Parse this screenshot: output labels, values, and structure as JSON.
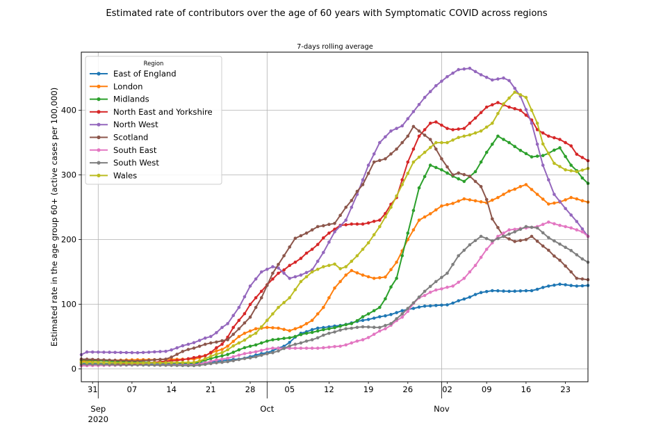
{
  "chart_data": {
    "type": "line",
    "title": "Estimated rate of contributors over the age of 60 years with Symptomatic COVID across regions",
    "subtitle": "7-days rolling average",
    "xlabel": "",
    "ylabel": "Estimated rate in the age group 60+ (active cases per 100,000)",
    "x_start": "2020-08-29",
    "x_end": "2020-11-27",
    "xlim_days": [
      0,
      90
    ],
    "ylim": [
      -20,
      490
    ],
    "yticks": [
      0,
      100,
      200,
      300,
      400
    ],
    "minor_ticks": [
      {
        "day": 2,
        "label": "31"
      },
      {
        "day": 9,
        "label": "07"
      },
      {
        "day": 16,
        "label": "14"
      },
      {
        "day": 23,
        "label": "21"
      },
      {
        "day": 30,
        "label": "28"
      },
      {
        "day": 37,
        "label": "05"
      },
      {
        "day": 44,
        "label": "12"
      },
      {
        "day": 51,
        "label": "19"
      },
      {
        "day": 58,
        "label": "26"
      },
      {
        "day": 65,
        "label": "02"
      },
      {
        "day": 72,
        "label": "09"
      },
      {
        "day": 79,
        "label": "16"
      },
      {
        "day": 86,
        "label": "23"
      }
    ],
    "major_ticks": [
      {
        "day": 3,
        "label": "Sep\n2020"
      },
      {
        "day": 33,
        "label": "Oct"
      },
      {
        "day": 64,
        "label": "Nov"
      }
    ],
    "grid": true,
    "legend": {
      "title": "Region",
      "position": "top-left"
    },
    "series": [
      {
        "name": "East of England",
        "color": "#1f77b4",
        "keys": [
          [
            0,
            9
          ],
          [
            10,
            8
          ],
          [
            20,
            8
          ],
          [
            28,
            15
          ],
          [
            33,
            25
          ],
          [
            36,
            35
          ],
          [
            39,
            55
          ],
          [
            42,
            63
          ],
          [
            46,
            67
          ],
          [
            50,
            75
          ],
          [
            54,
            82
          ],
          [
            58,
            92
          ],
          [
            61,
            97
          ],
          [
            65,
            99
          ],
          [
            68,
            108
          ],
          [
            71,
            118
          ],
          [
            73,
            121
          ],
          [
            76,
            120
          ],
          [
            80,
            121
          ],
          [
            83,
            128
          ],
          [
            85,
            131
          ],
          [
            88,
            128
          ],
          [
            90,
            129
          ]
        ]
      },
      {
        "name": "London",
        "color": "#ff7f0e",
        "keys": [
          [
            0,
            12
          ],
          [
            10,
            14
          ],
          [
            20,
            15
          ],
          [
            25,
            30
          ],
          [
            29,
            55
          ],
          [
            31,
            62
          ],
          [
            33,
            64
          ],
          [
            35,
            63
          ],
          [
            37,
            59
          ],
          [
            39,
            65
          ],
          [
            41,
            75
          ],
          [
            43,
            95
          ],
          [
            45,
            125
          ],
          [
            47,
            145
          ],
          [
            48,
            152
          ],
          [
            50,
            145
          ],
          [
            52,
            140
          ],
          [
            54,
            142
          ],
          [
            56,
            165
          ],
          [
            58,
            200
          ],
          [
            60,
            230
          ],
          [
            62,
            240
          ],
          [
            64,
            252
          ],
          [
            66,
            256
          ],
          [
            68,
            263
          ],
          [
            70,
            260
          ],
          [
            72,
            257
          ],
          [
            74,
            265
          ],
          [
            76,
            275
          ],
          [
            79,
            285
          ],
          [
            81,
            270
          ],
          [
            83,
            255
          ],
          [
            85,
            258
          ],
          [
            87,
            265
          ],
          [
            90,
            258
          ]
        ]
      },
      {
        "name": "Midlands",
        "color": "#2ca02c",
        "keys": [
          [
            0,
            14
          ],
          [
            10,
            10
          ],
          [
            20,
            9
          ],
          [
            25,
            20
          ],
          [
            30,
            35
          ],
          [
            34,
            45
          ],
          [
            37,
            48
          ],
          [
            40,
            55
          ],
          [
            44,
            62
          ],
          [
            48,
            70
          ],
          [
            51,
            85
          ],
          [
            53,
            95
          ],
          [
            56,
            140
          ],
          [
            58,
            210
          ],
          [
            60,
            280
          ],
          [
            62,
            315
          ],
          [
            64,
            308
          ],
          [
            66,
            298
          ],
          [
            68,
            290
          ],
          [
            70,
            305
          ],
          [
            72,
            335
          ],
          [
            74,
            360
          ],
          [
            76,
            350
          ],
          [
            78,
            338
          ],
          [
            80,
            328
          ],
          [
            82,
            330
          ],
          [
            85,
            342
          ],
          [
            87,
            315
          ],
          [
            90,
            287
          ]
        ]
      },
      {
        "name": "North East and Yorkshire",
        "color": "#d62728",
        "keys": [
          [
            0,
            5
          ],
          [
            10,
            8
          ],
          [
            17,
            13
          ],
          [
            22,
            20
          ],
          [
            25,
            38
          ],
          [
            28,
            75
          ],
          [
            31,
            110
          ],
          [
            33,
            130
          ],
          [
            35,
            148
          ],
          [
            38,
            165
          ],
          [
            41,
            185
          ],
          [
            44,
            210
          ],
          [
            46,
            222
          ],
          [
            48,
            224
          ],
          [
            50,
            224
          ],
          [
            53,
            230
          ],
          [
            56,
            265
          ],
          [
            58,
            320
          ],
          [
            60,
            360
          ],
          [
            62,
            380
          ],
          [
            63,
            382
          ],
          [
            65,
            372
          ],
          [
            66,
            370
          ],
          [
            68,
            372
          ],
          [
            70,
            388
          ],
          [
            72,
            405
          ],
          [
            74,
            412
          ],
          [
            76,
            405
          ],
          [
            78,
            400
          ],
          [
            80,
            385
          ],
          [
            81,
            370
          ],
          [
            83,
            360
          ],
          [
            85,
            355
          ],
          [
            87,
            345
          ],
          [
            88,
            332
          ],
          [
            90,
            322
          ]
        ]
      },
      {
        "name": "North West",
        "color": "#9467bd",
        "keys": [
          [
            0,
            22
          ],
          [
            1,
            26
          ],
          [
            10,
            25
          ],
          [
            15,
            27
          ],
          [
            19,
            38
          ],
          [
            23,
            50
          ],
          [
            26,
            70
          ],
          [
            28,
            95
          ],
          [
            30,
            128
          ],
          [
            32,
            150
          ],
          [
            34,
            158
          ],
          [
            35,
            156
          ],
          [
            37,
            140
          ],
          [
            39,
            145
          ],
          [
            41,
            153
          ],
          [
            43,
            180
          ],
          [
            45,
            212
          ],
          [
            47,
            230
          ],
          [
            49,
            270
          ],
          [
            51,
            315
          ],
          [
            53,
            350
          ],
          [
            55,
            368
          ],
          [
            57,
            376
          ],
          [
            59,
            398
          ],
          [
            61,
            420
          ],
          [
            63,
            438
          ],
          [
            65,
            452
          ],
          [
            67,
            463
          ],
          [
            69,
            465
          ],
          [
            71,
            455
          ],
          [
            73,
            447
          ],
          [
            75,
            450
          ],
          [
            76,
            446
          ],
          [
            78,
            422
          ],
          [
            80,
            380
          ],
          [
            82,
            315
          ],
          [
            84,
            270
          ],
          [
            86,
            248
          ],
          [
            88,
            228
          ],
          [
            90,
            205
          ]
        ]
      },
      {
        "name": "Scotland",
        "color": "#8c564b",
        "keys": [
          [
            0,
            15
          ],
          [
            10,
            12
          ],
          [
            15,
            15
          ],
          [
            19,
            30
          ],
          [
            23,
            40
          ],
          [
            26,
            45
          ],
          [
            28,
            62
          ],
          [
            30,
            80
          ],
          [
            32,
            110
          ],
          [
            34,
            148
          ],
          [
            36,
            175
          ],
          [
            38,
            202
          ],
          [
            40,
            210
          ],
          [
            42,
            220
          ],
          [
            45,
            225
          ],
          [
            47,
            250
          ],
          [
            50,
            285
          ],
          [
            52,
            320
          ],
          [
            54,
            325
          ],
          [
            56,
            340
          ],
          [
            58,
            360
          ],
          [
            59,
            375
          ],
          [
            60,
            368
          ],
          [
            62,
            355
          ],
          [
            64,
            325
          ],
          [
            66,
            300
          ],
          [
            67,
            303
          ],
          [
            69,
            298
          ],
          [
            71,
            282
          ],
          [
            72,
            262
          ],
          [
            73,
            232
          ],
          [
            75,
            205
          ],
          [
            77,
            197
          ],
          [
            79,
            200
          ],
          [
            80,
            205
          ],
          [
            82,
            190
          ],
          [
            85,
            168
          ],
          [
            87,
            150
          ],
          [
            88,
            140
          ],
          [
            90,
            138
          ]
        ]
      },
      {
        "name": "South East",
        "color": "#e377c2",
        "keys": [
          [
            0,
            5
          ],
          [
            10,
            6
          ],
          [
            20,
            6
          ],
          [
            25,
            15
          ],
          [
            30,
            25
          ],
          [
            34,
            32
          ],
          [
            38,
            32
          ],
          [
            42,
            32
          ],
          [
            46,
            35
          ],
          [
            50,
            45
          ],
          [
            54,
            62
          ],
          [
            57,
            80
          ],
          [
            60,
            110
          ],
          [
            63,
            122
          ],
          [
            66,
            128
          ],
          [
            68,
            140
          ],
          [
            70,
            160
          ],
          [
            72,
            185
          ],
          [
            74,
            205
          ],
          [
            76,
            215
          ],
          [
            79,
            218
          ],
          [
            81,
            220
          ],
          [
            83,
            227
          ],
          [
            85,
            222
          ],
          [
            87,
            218
          ],
          [
            89,
            212
          ],
          [
            90,
            205
          ]
        ]
      },
      {
        "name": "South West",
        "color": "#7f7f7f",
        "keys": [
          [
            0,
            7
          ],
          [
            10,
            6
          ],
          [
            20,
            5
          ],
          [
            25,
            10
          ],
          [
            30,
            17
          ],
          [
            34,
            25
          ],
          [
            38,
            38
          ],
          [
            41,
            45
          ],
          [
            44,
            55
          ],
          [
            47,
            62
          ],
          [
            50,
            65
          ],
          [
            53,
            64
          ],
          [
            55,
            70
          ],
          [
            57,
            85
          ],
          [
            59,
            102
          ],
          [
            61,
            120
          ],
          [
            63,
            135
          ],
          [
            65,
            148
          ],
          [
            67,
            175
          ],
          [
            69,
            192
          ],
          [
            71,
            205
          ],
          [
            73,
            198
          ],
          [
            75,
            205
          ],
          [
            77,
            212
          ],
          [
            79,
            220
          ],
          [
            81,
            218
          ],
          [
            83,
            203
          ],
          [
            85,
            193
          ],
          [
            87,
            183
          ],
          [
            89,
            170
          ],
          [
            90,
            165
          ]
        ]
      },
      {
        "name": "Wales",
        "color": "#bcbd22",
        "keys": [
          [
            0,
            10
          ],
          [
            10,
            9
          ],
          [
            20,
            10
          ],
          [
            25,
            25
          ],
          [
            28,
            40
          ],
          [
            31,
            55
          ],
          [
            33,
            75
          ],
          [
            35,
            95
          ],
          [
            37,
            110
          ],
          [
            39,
            135
          ],
          [
            41,
            150
          ],
          [
            43,
            158
          ],
          [
            45,
            162
          ],
          [
            46,
            155
          ],
          [
            47,
            158
          ],
          [
            49,
            175
          ],
          [
            51,
            195
          ],
          [
            53,
            220
          ],
          [
            55,
            250
          ],
          [
            57,
            285
          ],
          [
            59,
            320
          ],
          [
            61,
            335
          ],
          [
            63,
            350
          ],
          [
            65,
            350
          ],
          [
            67,
            358
          ],
          [
            69,
            362
          ],
          [
            71,
            368
          ],
          [
            73,
            380
          ],
          [
            75,
            410
          ],
          [
            77,
            428
          ],
          [
            79,
            420
          ],
          [
            81,
            380
          ],
          [
            82,
            348
          ],
          [
            84,
            318
          ],
          [
            86,
            308
          ],
          [
            88,
            305
          ],
          [
            90,
            310
          ]
        ]
      }
    ]
  }
}
